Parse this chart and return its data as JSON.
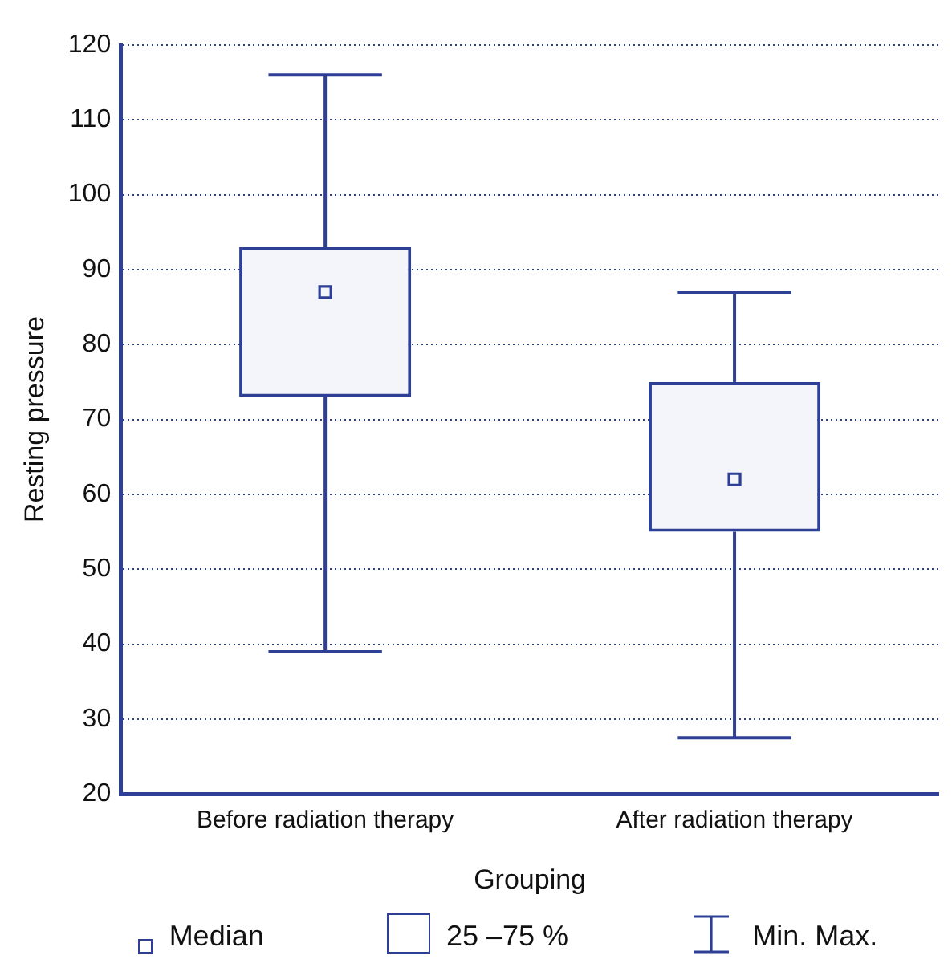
{
  "chart_data": {
    "type": "box",
    "xlabel": "Grouping",
    "ylabel": "Resting pressure",
    "categories": [
      "Before radiation therapy",
      "After radiation therapy"
    ],
    "boxes": [
      {
        "low": 39,
        "q1": 73,
        "median": 87,
        "q3": 93,
        "high": 116
      },
      {
        "low": 27.5,
        "q1": 55,
        "median": 62,
        "q3": 75,
        "high": 87
      }
    ],
    "color": "#2e3f96",
    "ylim": [
      20,
      120
    ],
    "yticks": [
      20,
      30,
      40,
      50,
      60,
      70,
      80,
      90,
      100,
      110,
      120
    ],
    "grid": "y",
    "annotations": [
      "Median",
      "25 –75 %",
      "Min. Max."
    ]
  }
}
